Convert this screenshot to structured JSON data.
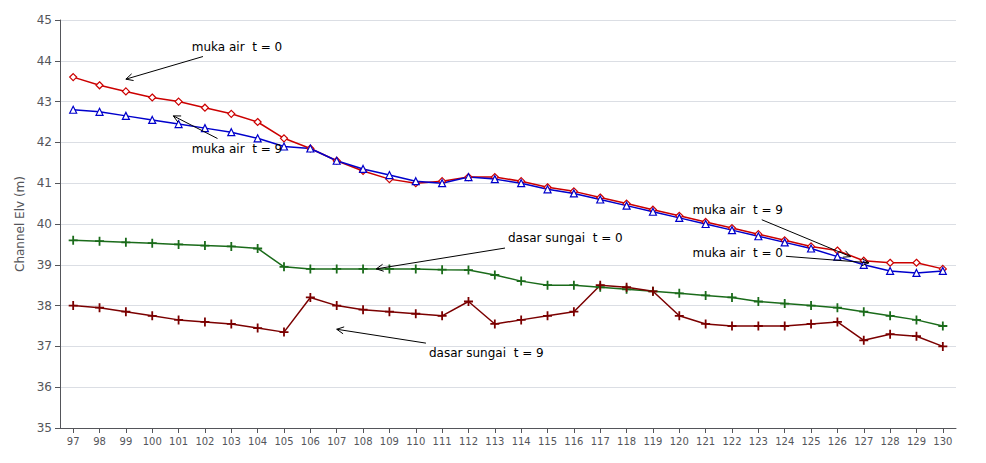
{
  "chart_data": {
    "type": "line",
    "ylabel": "Channel Elv (m)",
    "x": [
      97,
      98,
      99,
      100,
      101,
      102,
      103,
      104,
      105,
      106,
      107,
      108,
      109,
      110,
      111,
      112,
      113,
      114,
      115,
      116,
      117,
      118,
      119,
      120,
      121,
      122,
      123,
      124,
      125,
      126,
      127,
      128,
      129,
      130
    ],
    "series": [
      {
        "color": "#cc0000",
        "marker": "diamond",
        "values": [
          43.6,
          43.4,
          43.25,
          43.1,
          43.0,
          42.85,
          42.7,
          42.5,
          42.1,
          41.85,
          41.55,
          41.3,
          41.1,
          41.0,
          41.05,
          41.15,
          41.15,
          41.05,
          40.9,
          40.8,
          40.65,
          40.5,
          40.35,
          40.2,
          40.05,
          39.9,
          39.75,
          39.6,
          39.45,
          39.35,
          39.1,
          39.05,
          39.05,
          38.9
        ]
      },
      {
        "color": "#0000cc",
        "marker": "triangle",
        "values": [
          42.8,
          42.75,
          42.65,
          42.55,
          42.45,
          42.35,
          42.25,
          42.1,
          41.9,
          41.85,
          41.55,
          41.35,
          41.2,
          41.05,
          41.0,
          41.15,
          41.1,
          41.0,
          40.85,
          40.75,
          40.6,
          40.45,
          40.3,
          40.15,
          40.0,
          39.85,
          39.7,
          39.55,
          39.4,
          39.2,
          39.0,
          38.85,
          38.8,
          38.85
        ]
      },
      {
        "color": "#1a6b1a",
        "marker": "plus",
        "values": [
          39.6,
          39.58,
          39.55,
          39.53,
          39.5,
          39.47,
          39.45,
          39.4,
          38.95,
          38.9,
          38.9,
          38.9,
          38.9,
          38.9,
          38.88,
          38.87,
          38.75,
          38.6,
          38.5,
          38.5,
          38.45,
          38.4,
          38.35,
          38.3,
          38.25,
          38.2,
          38.1,
          38.05,
          38.0,
          37.95,
          37.85,
          37.75,
          37.65,
          37.5
        ]
      },
      {
        "color": "#7b0000",
        "marker": "plus",
        "values": [
          38.0,
          37.95,
          37.85,
          37.75,
          37.65,
          37.6,
          37.55,
          37.45,
          37.35,
          38.2,
          38.0,
          37.9,
          37.85,
          37.8,
          37.75,
          38.1,
          37.55,
          37.65,
          37.75,
          37.85,
          38.5,
          38.45,
          38.35,
          37.75,
          37.55,
          37.5,
          37.5,
          37.5,
          37.55,
          37.6,
          37.15,
          37.3,
          37.25,
          37.0
        ]
      }
    ],
    "xlim": [
      96.5,
      130.5
    ],
    "xticks": [
      97,
      98,
      99,
      100,
      101,
      102,
      103,
      104,
      105,
      106,
      107,
      108,
      109,
      110,
      111,
      112,
      113,
      114,
      115,
      116,
      117,
      118,
      119,
      120,
      121,
      122,
      123,
      124,
      125,
      126,
      127,
      128,
      129,
      130
    ],
    "ylim": [
      35,
      45
    ],
    "yticks": [
      35,
      36,
      37,
      38,
      39,
      40,
      41,
      42,
      43,
      44,
      45
    ],
    "grid": "y",
    "annotations": [
      {
        "text": "muka air  t = 0",
        "xy": [
          99.0,
          43.55
        ],
        "xytext": [
          101.5,
          44.35
        ]
      },
      {
        "text": "muka air  t = 9",
        "xy": [
          100.8,
          42.65
        ],
        "xytext": [
          101.5,
          41.85
        ]
      },
      {
        "text": "dasar sungai  t = 0",
        "xy": [
          108.5,
          38.9
        ],
        "xytext": [
          113.5,
          39.65
        ]
      },
      {
        "text": "dasar sungai  t = 9",
        "xy": [
          107.0,
          37.42
        ],
        "xytext": [
          110.5,
          36.85
        ]
      },
      {
        "text": "muka air  t = 9",
        "xy": [
          126.5,
          39.2
        ],
        "xytext": [
          120.5,
          40.35
        ]
      },
      {
        "text": "muka air  t = 0",
        "xy": [
          127.2,
          39.05
        ],
        "xytext": [
          120.5,
          39.3
        ]
      }
    ]
  }
}
